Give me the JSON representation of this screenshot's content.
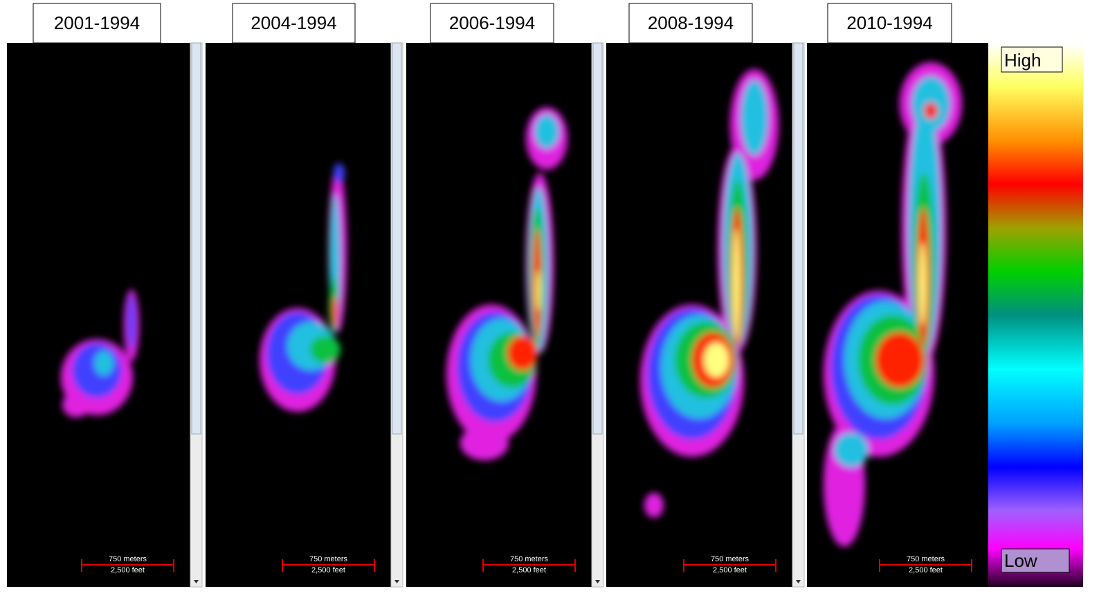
{
  "panels": [
    {
      "label": "2001-1994",
      "scale_top": "750 meters",
      "scale_bottom": "2,500 feet"
    },
    {
      "label": "2004-1994",
      "scale_top": "750 meters",
      "scale_bottom": "2,500 feet"
    },
    {
      "label": "2006-1994",
      "scale_top": "750 meters",
      "scale_bottom": "2,500 feet"
    },
    {
      "label": "2008-1994",
      "scale_top": "750 meters",
      "scale_bottom": "2,500 feet"
    },
    {
      "label": "2010-1994",
      "scale_top": "750 meters",
      "scale_bottom": "2,500 feet"
    }
  ],
  "legend": {
    "high": "High",
    "low": "Low"
  }
}
